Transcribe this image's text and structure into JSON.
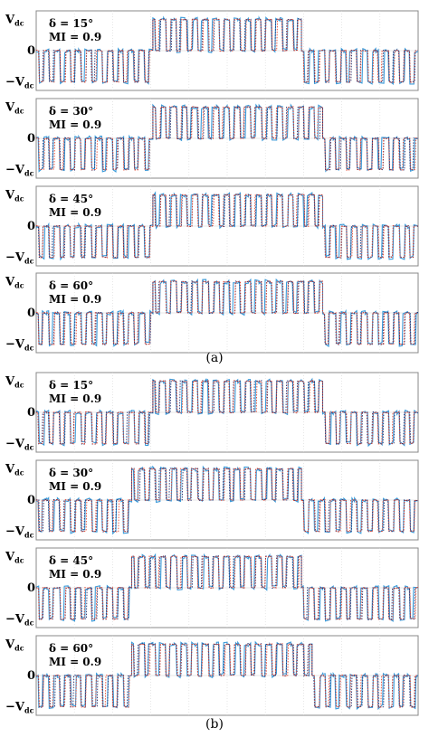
{
  "chart_data": [
    {
      "type": "line",
      "group": "(a)",
      "panels": [
        {
          "annotation_delta": "δ = 15°",
          "annotation_mi": "MI = 0.9",
          "yticks": [
            "V",
            "0",
            "−V"
          ],
          "ytick_sub": "dc",
          "ylim": [
            -1.1,
            1.1
          ],
          "xlim": [
            0,
            1
          ],
          "series": [
            {
              "name": "",
              "color": "#3a9ad9",
              "style": "solid"
            },
            {
              "name": "",
              "color": "#1f2a6b",
              "style": "dotted"
            },
            {
              "name": "",
              "color": "#e8452c",
              "style": "dotted"
            }
          ],
          "shape": {
            "high_start": 0.31,
            "high_end": 0.7,
            "pulses": 36,
            "delta_deg": 15
          }
        },
        {
          "annotation_delta": "δ = 30°",
          "annotation_mi": "MI = 0.9",
          "yticks": [
            "V",
            "0",
            "−V"
          ],
          "ytick_sub": "dc",
          "ylim": [
            -1.1,
            1.1
          ],
          "xlim": [
            0,
            1
          ],
          "series": [
            {
              "name": "",
              "color": "#3a9ad9",
              "style": "solid"
            },
            {
              "name": "",
              "color": "#1f2a6b",
              "style": "dotted"
            },
            {
              "name": "",
              "color": "#e8452c",
              "style": "dotted"
            }
          ],
          "shape": {
            "high_start": 0.3,
            "high_end": 0.74,
            "pulses": 36,
            "delta_deg": 30
          }
        },
        {
          "annotation_delta": "δ = 45°",
          "annotation_mi": "MI = 0.9",
          "yticks": [
            "V",
            "0",
            "−V"
          ],
          "ytick_sub": "dc",
          "ylim": [
            -1.1,
            1.1
          ],
          "xlim": [
            0,
            1
          ],
          "series": [
            {
              "name": "",
              "color": "#3a9ad9",
              "style": "solid"
            },
            {
              "name": "",
              "color": "#1f2a6b",
              "style": "dotted"
            },
            {
              "name": "",
              "color": "#e8452c",
              "style": "dotted"
            }
          ],
          "shape": {
            "high_start": 0.3,
            "high_end": 0.74,
            "pulses": 36,
            "delta_deg": 45
          }
        },
        {
          "annotation_delta": "δ = 60°",
          "annotation_mi": "MI = 0.9",
          "yticks": [
            "V",
            "0",
            "−V"
          ],
          "ytick_sub": "dc",
          "ylim": [
            -1.1,
            1.1
          ],
          "xlim": [
            0,
            1
          ],
          "series": [
            {
              "name": "",
              "color": "#3a9ad9",
              "style": "solid"
            },
            {
              "name": "",
              "color": "#1f2a6b",
              "style": "dotted"
            },
            {
              "name": "",
              "color": "#e8452c",
              "style": "dotted"
            }
          ],
          "shape": {
            "high_start": 0.3,
            "high_end": 0.74,
            "pulses": 36,
            "delta_deg": 60
          }
        }
      ]
    },
    {
      "type": "line",
      "group": "(b)",
      "panels": [
        {
          "annotation_delta": "δ = 15°",
          "annotation_mi": "MI = 0.9",
          "yticks": [
            "V",
            "0",
            "−V"
          ],
          "ytick_sub": "dc",
          "ylim": [
            -1.1,
            1.1
          ],
          "xlim": [
            0,
            1
          ],
          "series": [
            {
              "name": "",
              "color": "#3a9ad9",
              "style": "solid"
            },
            {
              "name": "",
              "color": "#1f2a6b",
              "style": "dotted"
            },
            {
              "name": "",
              "color": "#e8452c",
              "style": "dotted"
            }
          ],
          "shape": {
            "high_start": 0.3,
            "high_end": 0.74,
            "pulses": 36,
            "delta_deg": 15
          }
        },
        {
          "annotation_delta": "δ = 30°",
          "annotation_mi": "MI = 0.9",
          "yticks": [
            "V",
            "0",
            "−V"
          ],
          "ytick_sub": "dc",
          "ylim": [
            -1.1,
            1.1
          ],
          "xlim": [
            0,
            1
          ],
          "series": [
            {
              "name": "",
              "color": "#3a9ad9",
              "style": "solid"
            },
            {
              "name": "",
              "color": "#1f2a6b",
              "style": "dotted"
            },
            {
              "name": "",
              "color": "#e8452c",
              "style": "dotted"
            }
          ],
          "shape": {
            "high_start": 0.25,
            "high_end": 0.69,
            "pulses": 36,
            "delta_deg": 30
          }
        },
        {
          "annotation_delta": "δ = 45°",
          "annotation_mi": "MI = 0.9",
          "yticks": [
            "V",
            "0",
            "−V"
          ],
          "ytick_sub": "dc",
          "ylim": [
            -1.1,
            1.1
          ],
          "xlim": [
            0,
            1
          ],
          "series": [
            {
              "name": "",
              "color": "#3a9ad9",
              "style": "solid"
            },
            {
              "name": "",
              "color": "#1f2a6b",
              "style": "dotted"
            },
            {
              "name": "",
              "color": "#e8452c",
              "style": "dotted"
            }
          ],
          "shape": {
            "high_start": 0.25,
            "high_end": 0.7,
            "pulses": 36,
            "delta_deg": 45
          }
        },
        {
          "annotation_delta": "δ = 60°",
          "annotation_mi": "MI = 0.9",
          "yticks": [
            "V",
            "0",
            "−V"
          ],
          "ytick_sub": "dc",
          "ylim": [
            -1.1,
            1.1
          ],
          "xlim": [
            0,
            1
          ],
          "series": [
            {
              "name": "",
              "color": "#3a9ad9",
              "style": "solid"
            },
            {
              "name": "",
              "color": "#1f2a6b",
              "style": "dotted"
            },
            {
              "name": "",
              "color": "#e8452c",
              "style": "dotted"
            }
          ],
          "shape": {
            "high_start": 0.24,
            "high_end": 0.72,
            "pulses": 36,
            "delta_deg": 60
          }
        }
      ]
    }
  ],
  "captions": {
    "a": "(a)",
    "b": "(b)"
  }
}
